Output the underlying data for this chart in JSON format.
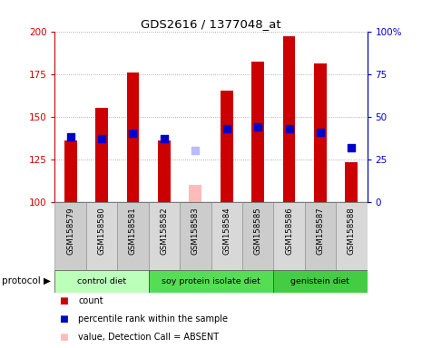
{
  "title": "GDS2616 / 1377048_at",
  "samples": [
    "GSM158579",
    "GSM158580",
    "GSM158581",
    "GSM158582",
    "GSM158583",
    "GSM158584",
    "GSM158585",
    "GSM158586",
    "GSM158587",
    "GSM158588"
  ],
  "red_bars": [
    136,
    155,
    176,
    136,
    null,
    165,
    182,
    197,
    181,
    123
  ],
  "blue_dots": [
    138,
    137,
    140,
    137,
    null,
    143,
    144,
    143,
    141,
    132
  ],
  "pink_bar": [
    null,
    null,
    null,
    null,
    110,
    null,
    null,
    null,
    null,
    null
  ],
  "lavender_dot": [
    null,
    null,
    null,
    null,
    130,
    null,
    null,
    null,
    null,
    null
  ],
  "groups": [
    {
      "label": "control diet",
      "start": 0,
      "end": 3,
      "color": "#bbffbb"
    },
    {
      "label": "soy protein isolate diet",
      "start": 3,
      "end": 7,
      "color": "#55dd55"
    },
    {
      "label": "genistein diet",
      "start": 7,
      "end": 10,
      "color": "#44cc44"
    }
  ],
  "ylim_left": [
    100,
    200
  ],
  "ylim_right": [
    0,
    100
  ],
  "yticks_left": [
    100,
    125,
    150,
    175,
    200
  ],
  "yticks_right": [
    0,
    25,
    50,
    75,
    100
  ],
  "ytick_labels_left": [
    "100",
    "125",
    "150",
    "175",
    "200"
  ],
  "ytick_labels_right": [
    "0",
    "25",
    "50",
    "75",
    "100%"
  ],
  "left_axis_color": "#cc0000",
  "right_axis_color": "#0000cc",
  "bar_color": "#cc0000",
  "dot_color": "#0000cc",
  "pink_color": "#ffbbbb",
  "lavender_color": "#bbbbff",
  "bar_width": 0.4,
  "dot_size": 28,
  "grid_linestyle": "dotted",
  "bg_color": "#ffffff",
  "sample_bg_color": "#cccccc",
  "protocol_label": "protocol"
}
